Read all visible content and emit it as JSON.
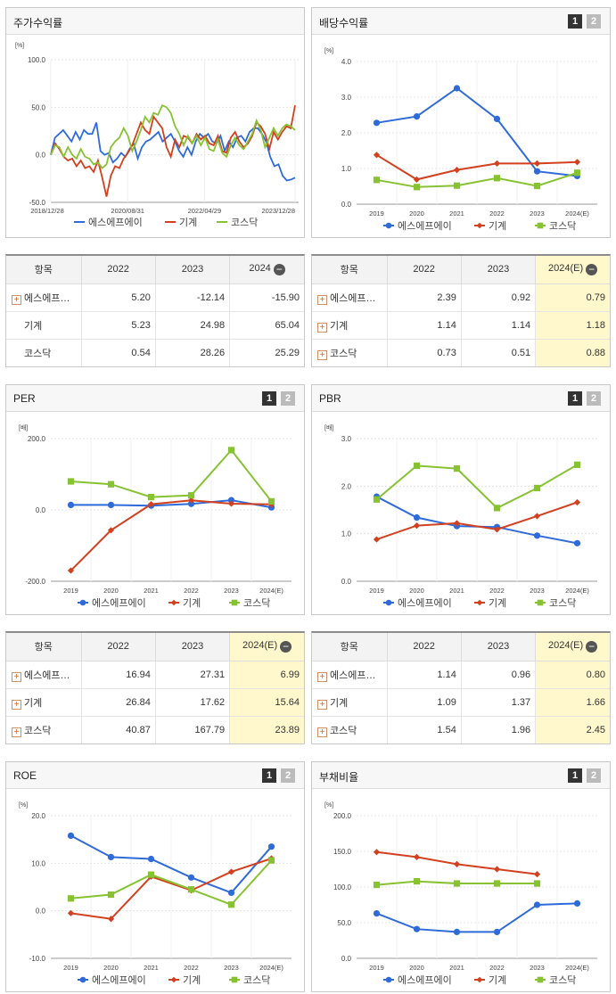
{
  "legend": {
    "s1": "에스에프에이",
    "s2": "기계",
    "s3": "코스닥"
  },
  "colors": {
    "s1": "#2f6bd8",
    "s2": "#d2401f",
    "s3": "#86c232"
  },
  "pager": {
    "p1": "1",
    "p2": "2"
  },
  "minus_sign": "−",
  "plus_sign": "+",
  "charts": {
    "stock": {
      "title": "주가수익률",
      "unit": "[%]",
      "chart_data": {
        "type": "line",
        "ylim": [
          -50,
          100
        ],
        "yticks": [
          "100.0",
          "50.0",
          "0.0",
          "-50.0"
        ],
        "xticks": [
          "2018/12/28",
          "2020/08/31",
          "2022/04/29",
          "2023/12/28"
        ],
        "series": [
          {
            "name": "에스에프에이",
            "values": [
              0,
              18,
              22,
              26,
              20,
              14,
              24,
              16,
              26,
              22,
              22,
              34,
              4,
              0,
              2,
              -8,
              -4,
              2,
              -2,
              6,
              12,
              -4,
              8,
              14,
              16,
              20,
              24,
              14,
              18,
              22,
              14,
              4,
              -2,
              8,
              0,
              14,
              22,
              18,
              22,
              14,
              12,
              20,
              4,
              14,
              8,
              18,
              20,
              14,
              24,
              28,
              28,
              22,
              14,
              -2,
              -12,
              -10,
              -22,
              -27,
              -26,
              -24
            ]
          },
          {
            "name": "기계",
            "values": [
              0,
              12,
              6,
              -2,
              -6,
              -4,
              -12,
              -6,
              -14,
              -12,
              -18,
              -6,
              -24,
              -44,
              -22,
              -12,
              -14,
              -4,
              2,
              10,
              22,
              34,
              26,
              22,
              40,
              34,
              28,
              8,
              -2,
              16,
              8,
              20,
              18,
              12,
              22,
              16,
              20,
              12,
              10,
              20,
              4,
              2,
              18,
              24,
              14,
              8,
              12,
              20,
              34,
              30,
              22,
              6,
              24,
              16,
              24,
              30,
              28,
              52
            ]
          },
          {
            "name": "코스닥",
            "values": [
              0,
              10,
              8,
              -2,
              8,
              0,
              -4,
              6,
              -2,
              -4,
              -10,
              -8,
              -14,
              -10,
              8,
              14,
              18,
              28,
              20,
              4,
              14,
              26,
              40,
              34,
              44,
              42,
              52,
              50,
              44,
              30,
              22,
              10,
              20,
              12,
              20,
              10,
              18,
              6,
              4,
              16,
              2,
              -2,
              10,
              18,
              10,
              6,
              14,
              22,
              36,
              26,
              8,
              18,
              28,
              20,
              28,
              32,
              30,
              26
            ]
          }
        ]
      }
    },
    "dividend": {
      "title": "배당수익률",
      "unit": "[%]",
      "chart_data": {
        "type": "line",
        "ylim": [
          0,
          4
        ],
        "yticks": [
          "4.0",
          "3.0",
          "2.0",
          "1.0",
          "0.0"
        ],
        "categories": [
          "2019",
          "2020",
          "2021",
          "2022",
          "2023",
          "2024(E)"
        ],
        "series": [
          {
            "name": "에스에프에이",
            "values": [
              2.28,
              2.46,
              3.25,
              2.39,
              0.92,
              0.79
            ]
          },
          {
            "name": "기계",
            "values": [
              1.38,
              0.69,
              0.96,
              1.14,
              1.14,
              1.18
            ]
          },
          {
            "name": "코스닥",
            "values": [
              0.68,
              0.48,
              0.52,
              0.73,
              0.51,
              0.88
            ]
          }
        ]
      }
    },
    "per": {
      "title": "PER",
      "unit": "[배]",
      "chart_data": {
        "type": "line",
        "ylim": [
          -200,
          200
        ],
        "yticks": [
          "200.0",
          "0.0",
          "-200.0"
        ],
        "categories": [
          "2019",
          "2020",
          "2021",
          "2022",
          "2023",
          "2024(E)"
        ],
        "series": [
          {
            "name": "에스에프에이",
            "values": [
              14,
              14,
              12,
              16.94,
              27.31,
              6.99
            ]
          },
          {
            "name": "기계",
            "values": [
              -170,
              -57,
              16,
              26.84,
              17.62,
              15.64
            ]
          },
          {
            "name": "코스닥",
            "values": [
              80,
              72,
              36,
              40.87,
              167.79,
              23.89
            ]
          }
        ]
      }
    },
    "pbr": {
      "title": "PBR",
      "unit": "[배]",
      "chart_data": {
        "type": "line",
        "ylim": [
          0,
          3
        ],
        "yticks": [
          "3.0",
          "2.0",
          "1.0",
          "0.0"
        ],
        "categories": [
          "2019",
          "2020",
          "2021",
          "2022",
          "2023",
          "2024(E)"
        ],
        "series": [
          {
            "name": "에스에프에이",
            "values": [
              1.78,
              1.34,
              1.16,
              1.14,
              0.96,
              0.8
            ]
          },
          {
            "name": "기계",
            "values": [
              0.88,
              1.17,
              1.22,
              1.09,
              1.37,
              1.66
            ]
          },
          {
            "name": "코스닥",
            "values": [
              1.72,
              2.43,
              2.37,
              1.54,
              1.96,
              2.45
            ]
          }
        ]
      }
    },
    "roe": {
      "title": "ROE",
      "unit": "[%]",
      "chart_data": {
        "type": "line",
        "ylim": [
          -10,
          20
        ],
        "yticks": [
          "20.0",
          "10.0",
          "0.0",
          "-10.0"
        ],
        "categories": [
          "2019",
          "2020",
          "2021",
          "2022",
          "2023",
          "2024(E)"
        ],
        "series": [
          {
            "name": "에스에프에이",
            "values": [
              15.8,
              11.3,
              10.9,
              7.0,
              3.8,
              13.5
            ]
          },
          {
            "name": "기계",
            "values": [
              -0.5,
              -1.7,
              7.2,
              4.3,
              8.2,
              11.0
            ]
          },
          {
            "name": "코스닥",
            "values": [
              2.6,
              3.4,
              7.6,
              4.5,
              1.3,
              10.6
            ]
          }
        ]
      }
    },
    "debt": {
      "title": "부채비율",
      "unit": "[%]",
      "chart_data": {
        "type": "line",
        "ylim": [
          0,
          200
        ],
        "yticks": [
          "200.0",
          "150.0",
          "100.0",
          "50.0",
          "0.0"
        ],
        "categories": [
          "2019",
          "2020",
          "2021",
          "2022",
          "2023",
          "2024(E)"
        ],
        "series": [
          {
            "name": "에스에프에이",
            "values": [
              63,
              41,
              37,
              37,
              75,
              77
            ]
          },
          {
            "name": "기계",
            "values": [
              149,
              142,
              132,
              125,
              118,
              null
            ]
          },
          {
            "name": "코스닥",
            "values": [
              103,
              108,
              105,
              105,
              105,
              null
            ]
          }
        ]
      }
    }
  },
  "tables": {
    "stock": {
      "headers": [
        "항목",
        "2022",
        "2023",
        "2024"
      ],
      "rows": [
        {
          "name": "에스에프…",
          "v": [
            "5.20",
            "-12.14",
            "-15.90"
          ]
        },
        {
          "name": "기계",
          "v": [
            "5.23",
            "24.98",
            "65.04"
          ]
        },
        {
          "name": "코스닥",
          "v": [
            "0.54",
            "28.26",
            "25.29"
          ]
        }
      ]
    },
    "dividend": {
      "headers": [
        "항목",
        "2022",
        "2023",
        "2024(E)"
      ],
      "rows": [
        {
          "name": "에스에프…",
          "v": [
            "2.39",
            "0.92",
            "0.79"
          ]
        },
        {
          "name": "기계",
          "v": [
            "1.14",
            "1.14",
            "1.18"
          ]
        },
        {
          "name": "코스닥",
          "v": [
            "0.73",
            "0.51",
            "0.88"
          ]
        }
      ]
    },
    "per": {
      "headers": [
        "항목",
        "2022",
        "2023",
        "2024(E)"
      ],
      "rows": [
        {
          "name": "에스에프…",
          "v": [
            "16.94",
            "27.31",
            "6.99"
          ]
        },
        {
          "name": "기계",
          "v": [
            "26.84",
            "17.62",
            "15.64"
          ]
        },
        {
          "name": "코스닥",
          "v": [
            "40.87",
            "167.79",
            "23.89"
          ]
        }
      ]
    },
    "pbr": {
      "headers": [
        "항목",
        "2022",
        "2023",
        "2024(E)"
      ],
      "rows": [
        {
          "name": "에스에프…",
          "v": [
            "1.14",
            "0.96",
            "0.80"
          ]
        },
        {
          "name": "기계",
          "v": [
            "1.09",
            "1.37",
            "1.66"
          ]
        },
        {
          "name": "코스닥",
          "v": [
            "1.54",
            "1.96",
            "2.45"
          ]
        }
      ]
    }
  }
}
